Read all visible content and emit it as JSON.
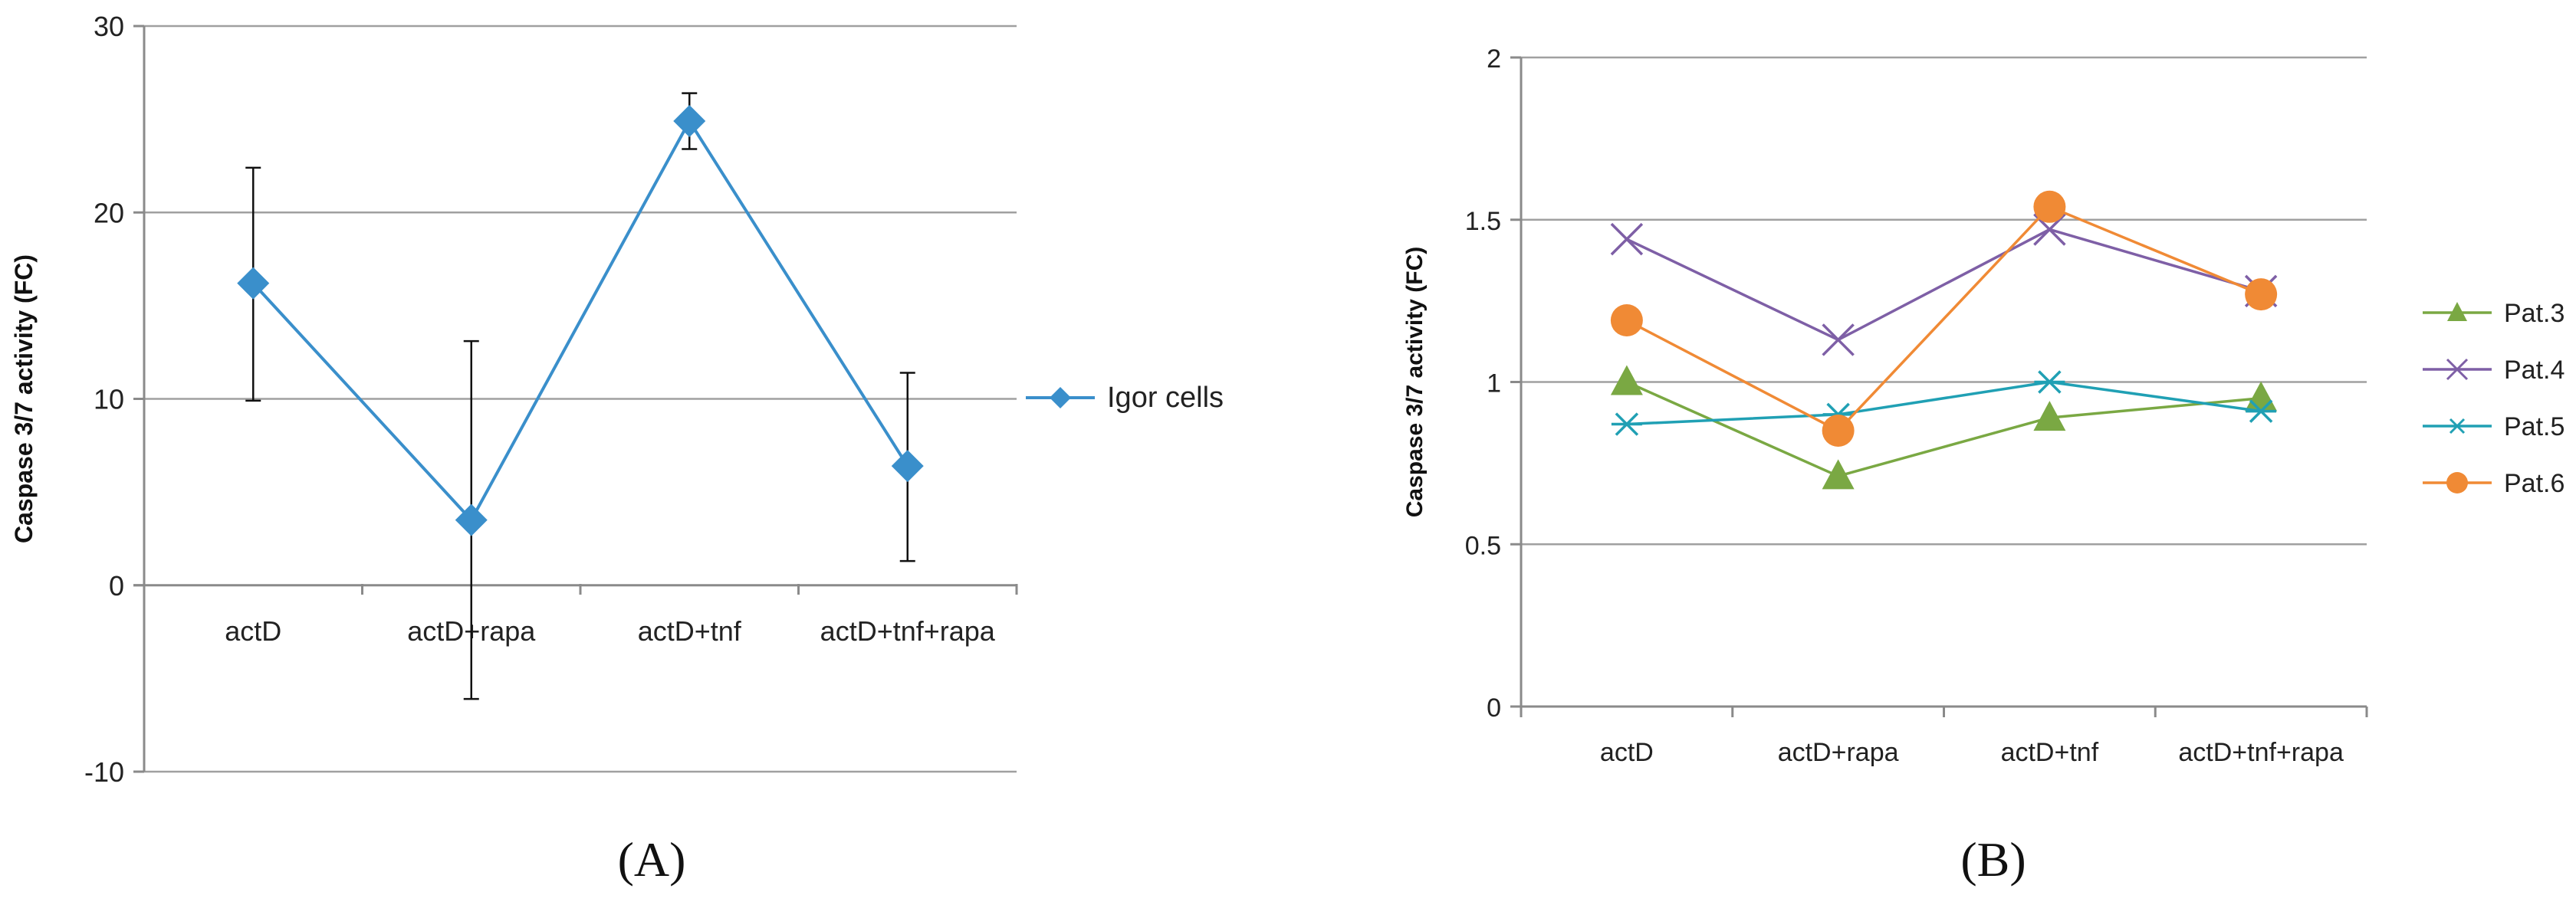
{
  "chart_data": [
    {
      "panel": "A",
      "panel_label": "(A)",
      "type": "line",
      "categories": [
        "actD",
        "actD+rapa",
        "actD+tnf",
        "actD+tnf+rapa"
      ],
      "ylabel": "Caspase 3/7 activity (FC)",
      "xlabel": "",
      "ylim": [
        -10,
        30
      ],
      "yticks": [
        -10,
        0,
        10,
        20,
        30
      ],
      "grid": true,
      "legend": "right",
      "series": [
        {
          "name": "Igor cells",
          "color": "#3A8FCB",
          "marker": "diamond",
          "values": [
            16.2,
            3.5,
            24.9,
            6.4
          ],
          "error_low": [
            9.9,
            -6.1,
            23.4,
            1.3
          ],
          "error_high": [
            22.4,
            13.1,
            26.4,
            11.4
          ]
        }
      ]
    },
    {
      "panel": "B",
      "panel_label": "(B)",
      "type": "line",
      "categories": [
        "actD",
        "actD+rapa",
        "actD+tnf",
        "actD+tnf+rapa"
      ],
      "ylabel": "Caspase 3/7 activity (FC)",
      "xlabel": "",
      "ylim": [
        0,
        2
      ],
      "yticks": [
        "0",
        "0.5",
        "1",
        "1.5",
        "2"
      ],
      "grid": true,
      "legend": "right",
      "series": [
        {
          "name": "Pat.3",
          "color": "#7AA843",
          "marker": "triangle",
          "values": [
            1.0,
            0.71,
            0.89,
            0.95
          ]
        },
        {
          "name": "Pat.4",
          "color": "#7E5FA6",
          "marker": "x",
          "values": [
            1.44,
            1.13,
            1.47,
            1.28
          ]
        },
        {
          "name": "Pat.5",
          "color": "#20A0B4",
          "marker": "star",
          "values": [
            0.87,
            0.9,
            1.0,
            0.91
          ]
        },
        {
          "name": "Pat.6",
          "color": "#F08A35",
          "marker": "circle",
          "values": [
            1.19,
            0.85,
            1.54,
            1.27
          ]
        }
      ]
    }
  ]
}
